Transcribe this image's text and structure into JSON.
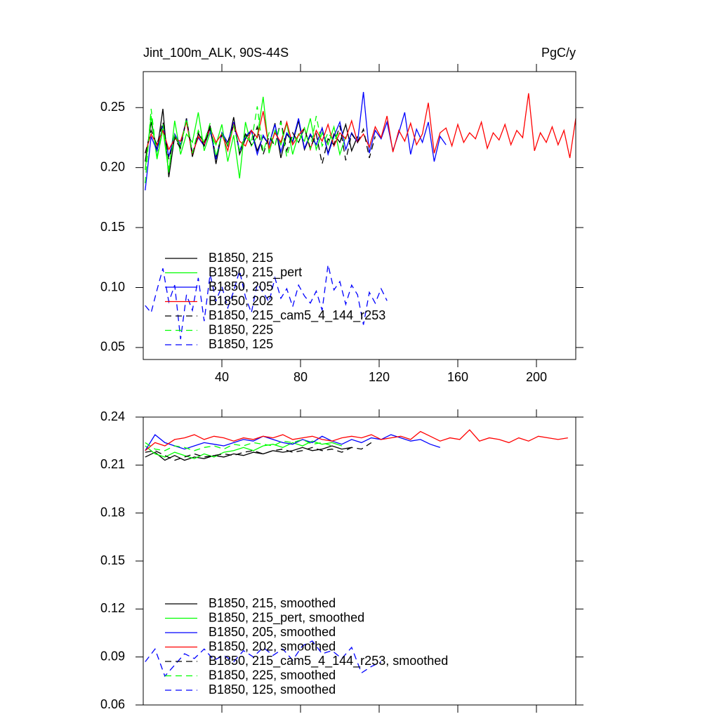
{
  "chart_data": [
    {
      "type": "line",
      "title": "Jint_100m_ALK, 90S-44S",
      "units_label": "PgC/y",
      "xlim": [
        0,
        220
      ],
      "xticks": [
        40,
        80,
        120,
        160,
        200
      ],
      "xtick_labels": true,
      "ylim": [
        0.04,
        0.28
      ],
      "yticks": [
        0.05,
        {
          "value": 0.1,
          "label": "0.10"
        },
        0.15,
        {
          "value": 0.2,
          "label": "0.20"
        },
        0.25
      ],
      "legend": "lower left",
      "x": [
        1,
        4,
        7,
        10,
        13,
        16,
        19,
        22,
        25,
        28,
        31,
        34,
        37,
        40,
        43,
        46,
        49,
        52,
        55,
        58,
        61,
        64,
        67,
        70,
        73,
        76,
        79,
        82,
        85,
        88,
        91,
        94,
        97,
        100,
        103,
        106,
        109,
        112,
        115,
        118,
        121,
        124,
        127,
        130,
        133,
        136,
        139,
        142,
        145,
        148,
        151,
        154,
        157,
        160,
        163,
        166,
        169,
        172,
        175,
        178,
        181,
        184,
        187,
        190,
        193,
        196,
        199,
        202,
        205,
        208,
        211,
        214,
        217,
        220
      ],
      "series": [
        {
          "name": "B1850, 215",
          "color": "#000000",
          "dash": false,
          "values": [
            0.205,
            0.238,
            0.214,
            0.249,
            0.192,
            0.226,
            0.217,
            0.241,
            0.209,
            0.228,
            0.221,
            0.235,
            0.203,
            0.229,
            0.218,
            0.242,
            0.211,
            0.224,
            0.231,
            0.214,
            0.226,
            0.219,
            0.237,
            0.208,
            0.228,
            0.221,
            0.239,
            0.215,
            0.227,
            0.219,
            0.233,
            0.212,
            0.228,
            0.221,
            0.236,
            0.214,
            0.226,
            null,
            null,
            null,
            null,
            null,
            null,
            null,
            null,
            null,
            null,
            null,
            null,
            null,
            null,
            null,
            null,
            null,
            null,
            null,
            null,
            null,
            null,
            null,
            null,
            null,
            null,
            null,
            null,
            null,
            null,
            null,
            null,
            null,
            null,
            null,
            null,
            null
          ]
        },
        {
          "name": "B1850, 215_pert",
          "color": "#00ff00",
          "dash": false,
          "values": [
            0.198,
            0.243,
            0.207,
            0.232,
            0.196,
            0.239,
            0.211,
            0.228,
            0.221,
            0.246,
            0.214,
            0.229,
            0.219,
            0.236,
            0.205,
            0.227,
            0.191,
            0.238,
            0.218,
            0.226,
            0.259,
            0.212,
            0.231,
            0.219,
            0.237,
            0.211,
            0.228,
            0.222,
            0.241,
            0.215,
            0.229,
            0.219,
            0.234,
            0.211,
            0.226,
            null,
            null,
            null,
            null,
            null,
            null,
            null,
            null,
            null,
            null,
            null,
            null,
            null,
            null,
            null,
            null,
            null,
            null,
            null,
            null,
            null,
            null,
            null,
            null,
            null,
            null,
            null,
            null,
            null,
            null,
            null,
            null,
            null,
            null,
            null,
            null,
            null,
            null,
            null
          ]
        },
        {
          "name": "B1850, 205",
          "color": "#0000ff",
          "dash": false,
          "values": [
            0.181,
            0.226,
            0.214,
            0.235,
            0.209,
            0.228,
            0.219,
            0.241,
            0.212,
            0.225,
            0.218,
            0.232,
            0.207,
            0.229,
            0.221,
            0.238,
            0.214,
            0.226,
            0.231,
            0.211,
            0.227,
            0.219,
            0.236,
            0.213,
            0.229,
            0.222,
            0.241,
            0.216,
            0.228,
            0.219,
            0.233,
            0.211,
            0.226,
            0.238,
            0.215,
            0.229,
            0.221,
            0.263,
            0.212,
            0.231,
            0.224,
            0.238,
            0.214,
            0.229,
            0.246,
            0.211,
            0.232,
            0.221,
            0.238,
            0.205,
            0.226,
            0.219,
            null,
            null,
            null,
            null,
            null,
            null,
            null,
            null,
            null,
            null,
            null,
            null,
            null,
            null,
            null,
            null,
            null,
            null,
            null,
            null,
            null,
            null
          ]
        },
        {
          "name": "B1850, 202",
          "color": "#ff0000",
          "dash": false,
          "values": [
            0.212,
            0.228,
            0.219,
            0.231,
            0.215,
            0.224,
            0.222,
            0.238,
            0.211,
            0.226,
            0.219,
            0.233,
            0.221,
            0.228,
            0.214,
            0.236,
            0.222,
            0.218,
            0.231,
            0.225,
            0.247,
            0.216,
            0.229,
            0.221,
            0.238,
            0.219,
            0.227,
            0.233,
            0.215,
            0.231,
            0.222,
            0.236,
            0.218,
            0.229,
            0.224,
            0.239,
            0.221,
            0.228,
            0.217,
            0.234,
            0.225,
            0.243,
            0.213,
            0.231,
            0.222,
            0.237,
            0.219,
            0.228,
            0.254,
            0.212,
            0.229,
            0.233,
            0.218,
            0.236,
            0.221,
            0.229,
            0.224,
            0.238,
            0.216,
            0.229,
            0.223,
            0.236,
            0.219,
            0.231,
            0.225,
            0.262,
            0.214,
            0.229,
            0.221,
            0.234,
            0.219,
            0.231,
            0.208,
            0.241
          ]
        },
        {
          "name": "B1850, 215_cam5_4_144_r253",
          "color": "#000000",
          "dash": true,
          "values": [
            0.212,
            0.231,
            0.219,
            0.238,
            0.207,
            0.224,
            0.216,
            0.241,
            0.211,
            0.229,
            0.218,
            0.233,
            0.209,
            0.227,
            0.221,
            0.236,
            0.213,
            0.228,
            0.219,
            0.234,
            0.211,
            0.226,
            0.218,
            0.239,
            0.214,
            0.229,
            0.221,
            0.233,
            0.216,
            0.228,
            0.203,
            0.224,
            0.219,
            0.235,
            0.206,
            0.228,
            0.221,
            0.232,
            0.208,
            0.226,
            null,
            null,
            null,
            null,
            null,
            null,
            null,
            null,
            null,
            null,
            null,
            null,
            null,
            null,
            null,
            null,
            null,
            null,
            null,
            null,
            null,
            null,
            null,
            null,
            null,
            null,
            null,
            null,
            null,
            null,
            null,
            null,
            null,
            null
          ]
        },
        {
          "name": "B1850, 225",
          "color": "#00ff00",
          "dash": true,
          "values": [
            0.187,
            0.249,
            0.208,
            0.236,
            0.199,
            0.228,
            0.217,
            0.241,
            0.212,
            0.231,
            0.221,
            0.237,
            0.209,
            0.228,
            0.219,
            0.235,
            0.214,
            0.226,
            0.221,
            0.251,
            0.213,
            0.229,
            0.218,
            0.238,
            0.209,
            0.227,
            0.221,
            0.233,
            0.215,
            0.243,
            0.218,
            0.229,
            0.222,
            0.231,
            null,
            null,
            null,
            null,
            null,
            null,
            null,
            null,
            null,
            null,
            null,
            null,
            null,
            null,
            null,
            null,
            null,
            null,
            null,
            null,
            null,
            null,
            null,
            null,
            null,
            null,
            null,
            null,
            null,
            null,
            null,
            null,
            null,
            null,
            null,
            null,
            null,
            null,
            null,
            null
          ]
        },
        {
          "name": "B1850, 125",
          "color": "#0000ff",
          "dash": true,
          "values": [
            0.085,
            0.079,
            0.098,
            0.116,
            0.088,
            0.102,
            0.057,
            0.094,
            0.081,
            0.108,
            0.072,
            0.111,
            0.089,
            0.101,
            0.083,
            0.097,
            0.114,
            0.092,
            0.079,
            0.103,
            0.096,
            0.088,
            0.108,
            0.091,
            0.099,
            0.084,
            0.102,
            0.093,
            0.087,
            0.097,
            0.081,
            0.119,
            0.098,
            0.105,
            0.086,
            0.102,
            0.094,
            0.069,
            0.096,
            0.087,
            0.099,
            0.089,
            null,
            null,
            null,
            null,
            null,
            null,
            null,
            null,
            null,
            null,
            null,
            null,
            null,
            null,
            null,
            null,
            null,
            null,
            null,
            null,
            null,
            null,
            null,
            null,
            null,
            null,
            null,
            null,
            null,
            null,
            null,
            null
          ]
        }
      ]
    },
    {
      "type": "line",
      "xlim": [
        0,
        220
      ],
      "xticks": [
        40,
        80,
        120,
        160,
        200
      ],
      "xtick_labels": false,
      "ylim": [
        0.06,
        0.24
      ],
      "yticks": [
        0.06,
        0.09,
        0.12,
        0.15,
        0.18,
        0.21,
        0.24
      ],
      "legend": "lower left",
      "x": [
        1,
        6,
        11,
        16,
        21,
        26,
        31,
        36,
        41,
        46,
        51,
        56,
        61,
        66,
        71,
        76,
        81,
        86,
        91,
        96,
        101,
        106,
        111,
        116,
        121,
        126,
        131,
        136,
        141,
        146,
        151,
        156,
        161,
        166,
        171,
        176,
        181,
        186,
        191,
        196,
        201,
        206,
        211,
        216
      ],
      "series": [
        {
          "name": "B1850, 215, smoothed",
          "color": "#000000",
          "dash": false,
          "values": [
            0.215,
            0.218,
            0.213,
            0.216,
            0.213,
            0.215,
            0.214,
            0.216,
            0.215,
            0.217,
            0.216,
            0.218,
            0.217,
            0.219,
            0.218,
            0.219,
            0.221,
            0.219,
            0.22,
            0.222,
            0.22,
            0.221,
            null,
            null,
            null,
            null,
            null,
            null,
            null,
            null,
            null,
            null,
            null,
            null,
            null,
            null,
            null,
            null,
            null,
            null,
            null,
            null,
            null,
            null
          ]
        },
        {
          "name": "B1850, 215_pert, smoothed",
          "color": "#00ff00",
          "dash": false,
          "values": [
            0.222,
            0.217,
            0.215,
            0.218,
            0.216,
            0.214,
            0.217,
            0.215,
            0.218,
            0.219,
            0.221,
            0.219,
            0.222,
            0.223,
            0.221,
            0.224,
            0.222,
            0.225,
            0.223,
            0.224,
            0.222,
            null,
            null,
            null,
            null,
            null,
            null,
            null,
            null,
            null,
            null,
            null,
            null,
            null,
            null,
            null,
            null,
            null,
            null,
            null,
            null,
            null,
            null,
            null
          ]
        },
        {
          "name": "B1850, 205, smoothed",
          "color": "#0000ff",
          "dash": false,
          "values": [
            0.219,
            0.229,
            0.224,
            0.222,
            0.22,
            0.222,
            0.224,
            0.223,
            0.222,
            0.224,
            0.226,
            0.225,
            0.228,
            0.226,
            0.224,
            0.223,
            0.226,
            0.224,
            0.228,
            0.225,
            0.223,
            0.226,
            0.224,
            0.227,
            0.226,
            0.229,
            0.227,
            0.225,
            0.226,
            0.223,
            0.221,
            null,
            null,
            null,
            null,
            null,
            null,
            null,
            null,
            null,
            null,
            null,
            null,
            null
          ]
        },
        {
          "name": "B1850, 202, smoothed",
          "color": "#ff0000",
          "dash": false,
          "values": [
            0.219,
            0.224,
            0.222,
            0.226,
            0.227,
            0.229,
            0.226,
            0.228,
            0.227,
            0.225,
            0.227,
            0.226,
            0.228,
            0.227,
            0.229,
            0.226,
            0.227,
            0.228,
            0.226,
            0.225,
            0.227,
            0.228,
            0.227,
            0.229,
            0.226,
            0.227,
            0.228,
            0.226,
            0.231,
            0.228,
            0.225,
            0.227,
            0.226,
            0.232,
            0.225,
            0.227,
            0.226,
            0.224,
            0.227,
            0.225,
            0.228,
            0.227,
            0.226,
            0.227
          ]
        },
        {
          "name": "B1850, 215_cam5_4_144_r253, smoothed",
          "color": "#000000",
          "dash": true,
          "values": [
            0.218,
            0.219,
            0.216,
            0.213,
            0.215,
            0.217,
            0.215,
            0.216,
            0.217,
            0.216,
            0.218,
            0.219,
            0.217,
            0.219,
            0.22,
            0.218,
            0.219,
            0.221,
            0.219,
            0.22,
            0.218,
            0.221,
            0.22,
            0.224,
            null,
            null,
            null,
            null,
            null,
            null,
            null,
            null,
            null,
            null,
            null,
            null,
            null,
            null,
            null,
            null,
            null,
            null,
            null,
            null
          ]
        },
        {
          "name": "B1850, 225, smoothed",
          "color": "#00ff00",
          "dash": true,
          "values": [
            0.224,
            0.22,
            0.219,
            0.222,
            0.221,
            0.219,
            0.221,
            0.222,
            0.22,
            0.223,
            0.222,
            0.224,
            0.223,
            0.222,
            0.225,
            0.224,
            0.226,
            0.223,
            0.224,
            0.222,
            null,
            null,
            null,
            null,
            null,
            null,
            null,
            null,
            null,
            null,
            null,
            null,
            null,
            null,
            null,
            null,
            null,
            null,
            null,
            null,
            null,
            null,
            null,
            null
          ]
        },
        {
          "name": "B1850, 125, smoothed",
          "color": "#0000ff",
          "dash": true,
          "values": [
            0.087,
            0.095,
            0.078,
            0.085,
            0.092,
            0.089,
            0.095,
            0.088,
            0.091,
            0.087,
            0.094,
            0.09,
            0.096,
            0.091,
            0.095,
            0.088,
            0.097,
            0.1,
            0.092,
            0.094,
            0.089,
            0.096,
            0.08,
            0.084,
            0.087,
            null,
            null,
            null,
            null,
            null,
            null,
            null,
            null,
            null,
            null,
            null,
            null,
            null,
            null,
            null,
            null,
            null,
            null,
            null
          ]
        }
      ]
    }
  ]
}
